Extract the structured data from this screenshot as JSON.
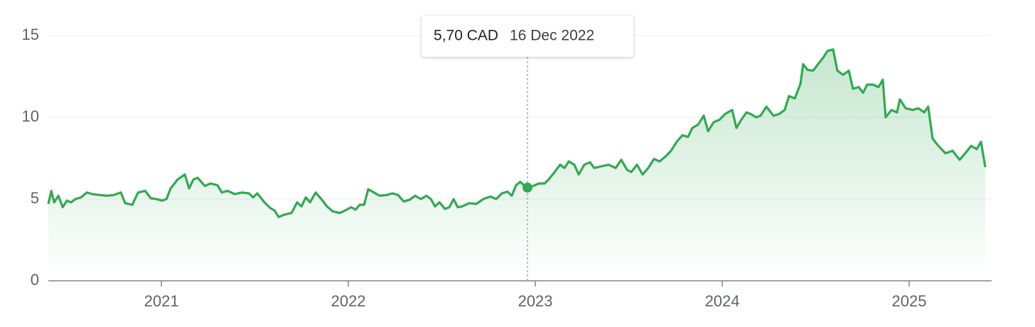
{
  "chart_data": {
    "type": "area-line",
    "color": "#34a853",
    "grid": true,
    "xlim": [
      2020.395,
      2025.441
    ],
    "xticks": [
      2021,
      2022,
      2023,
      2024,
      2025
    ],
    "ylim": [
      0,
      15
    ],
    "yticks": [
      0,
      5,
      10,
      15
    ],
    "annotation": {
      "label": "5,70 CAD",
      "date": "16 Dec 2022",
      "x": 2022.958,
      "y": 5.7
    },
    "x": [
      2020.395,
      2020.411,
      2020.426,
      2020.449,
      2020.472,
      2020.494,
      2020.517,
      2020.54,
      2020.57,
      2020.601,
      2020.631,
      2020.669,
      2020.707,
      2020.745,
      2020.783,
      2020.806,
      2020.844,
      2020.875,
      2020.913,
      2020.943,
      2020.973,
      2021.004,
      2021.027,
      2021.049,
      2021.087,
      2021.125,
      2021.148,
      2021.171,
      2021.194,
      2021.232,
      2021.262,
      2021.3,
      2021.323,
      2021.354,
      2021.392,
      2021.43,
      2021.468,
      2021.49,
      2021.513,
      2021.551,
      2021.582,
      2021.605,
      2021.627,
      2021.658,
      2021.696,
      2021.726,
      2021.749,
      2021.772,
      2021.795,
      2021.825,
      2021.855,
      2021.886,
      2021.916,
      2021.954,
      2021.992,
      2022.015,
      2022.038,
      2022.061,
      2022.084,
      2022.106,
      2022.137,
      2022.167,
      2022.205,
      2022.236,
      2022.266,
      2022.296,
      2022.327,
      2022.357,
      2022.388,
      2022.418,
      2022.441,
      2022.464,
      2022.487,
      2022.517,
      2022.54,
      2022.563,
      2022.585,
      2022.608,
      2022.646,
      2022.684,
      2022.722,
      2022.76,
      2022.791,
      2022.821,
      2022.852,
      2022.874,
      2022.897,
      2022.92,
      2022.943,
      2022.958,
      2022.988,
      2023.019,
      2023.049,
      2023.072,
      2023.103,
      2023.133,
      2023.156,
      2023.179,
      2023.209,
      2023.232,
      2023.262,
      2023.293,
      2023.315,
      2023.353,
      2023.392,
      2023.43,
      2023.46,
      2023.49,
      2023.513,
      2023.544,
      2023.574,
      2023.604,
      2023.635,
      2023.665,
      2023.696,
      2023.726,
      2023.756,
      2023.787,
      2023.817,
      2023.84,
      2023.871,
      2023.901,
      2023.924,
      2023.954,
      2023.985,
      2024.015,
      2024.053,
      2024.076,
      2024.099,
      2024.129,
      2024.152,
      2024.182,
      2024.205,
      2024.236,
      2024.274,
      2024.304,
      2024.334,
      2024.357,
      2024.388,
      2024.418,
      2024.433,
      2024.456,
      2024.486,
      2024.509,
      2024.54,
      2024.562,
      2024.593,
      2024.616,
      2024.646,
      2024.677,
      2024.699,
      2024.73,
      2024.753,
      2024.775,
      2024.806,
      2024.836,
      2024.859,
      2024.874,
      2024.905,
      2024.935,
      2024.95,
      2024.981,
      2025.019,
      2025.049,
      2025.08,
      2025.102,
      2025.125,
      2025.156,
      2025.194,
      2025.232,
      2025.27,
      2025.3,
      2025.331,
      2025.361,
      2025.384,
      2025.407
    ],
    "values": [
      4.7,
      5.5,
      4.8,
      5.2,
      4.5,
      4.9,
      4.8,
      5.0,
      5.1,
      5.4,
      5.3,
      5.25,
      5.2,
      5.25,
      5.4,
      4.75,
      4.65,
      5.4,
      5.5,
      5.05,
      5.0,
      4.9,
      5.0,
      5.65,
      6.2,
      6.5,
      5.65,
      6.2,
      6.3,
      5.8,
      5.95,
      5.85,
      5.4,
      5.5,
      5.3,
      5.4,
      5.35,
      5.1,
      5.35,
      4.8,
      4.45,
      4.3,
      3.9,
      4.05,
      4.15,
      4.8,
      4.55,
      5.1,
      4.8,
      5.4,
      5.0,
      4.55,
      4.25,
      4.15,
      4.35,
      4.5,
      4.35,
      4.65,
      4.65,
      5.6,
      5.4,
      5.2,
      5.25,
      5.35,
      5.25,
      4.85,
      4.95,
      5.2,
      5.0,
      5.2,
      5.0,
      4.55,
      4.8,
      4.4,
      4.5,
      5.0,
      4.5,
      4.55,
      4.75,
      4.7,
      5.0,
      5.15,
      5.0,
      5.35,
      5.45,
      5.2,
      5.85,
      6.05,
      5.8,
      5.7,
      5.8,
      5.95,
      5.95,
      6.2,
      6.65,
      7.1,
      6.9,
      7.3,
      7.1,
      6.5,
      7.1,
      7.25,
      6.9,
      7.0,
      7.1,
      6.9,
      7.4,
      6.8,
      6.65,
      7.1,
      6.5,
      6.9,
      7.45,
      7.3,
      7.6,
      7.95,
      8.5,
      8.9,
      8.8,
      9.35,
      9.55,
      10.1,
      9.15,
      9.7,
      9.85,
      10.2,
      10.45,
      9.35,
      9.8,
      10.3,
      10.2,
      10.0,
      10.1,
      10.65,
      10.1,
      10.2,
      10.45,
      11.3,
      11.15,
      12.05,
      13.25,
      12.9,
      12.85,
      13.2,
      13.65,
      14.05,
      14.15,
      12.85,
      12.6,
      12.85,
      11.75,
      11.85,
      11.5,
      12.0,
      12.0,
      11.85,
      12.3,
      10.0,
      10.45,
      10.3,
      11.1,
      10.55,
      10.45,
      10.55,
      10.3,
      10.65,
      8.7,
      8.25,
      7.8,
      7.95,
      7.4,
      7.8,
      8.25,
      8.05,
      8.5,
      6.95
    ]
  }
}
